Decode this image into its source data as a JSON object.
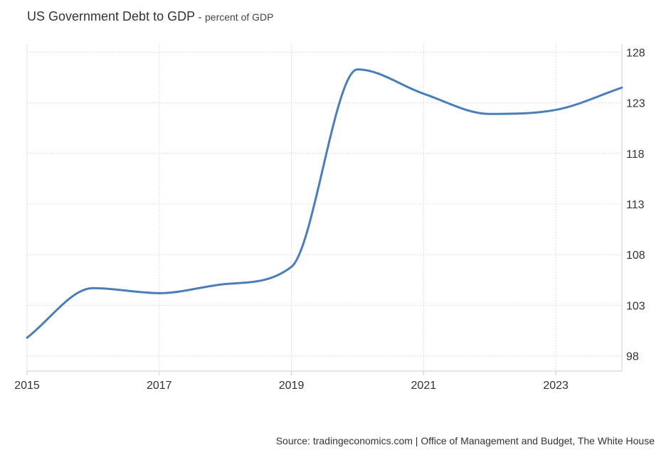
{
  "chart_data": {
    "type": "line",
    "title": "US Government Debt to GDP",
    "title_separator": "-",
    "subtitle": "percent of GDP",
    "x_tick_labels": [
      "2015",
      "2017",
      "2019",
      "2021",
      "2023"
    ],
    "y_tick_labels": [
      "98",
      "103",
      "108",
      "113",
      "118",
      "123",
      "128"
    ],
    "xlim": [
      2015,
      2024
    ],
    "ylim": [
      96.5,
      128.8
    ],
    "y_axis_position": "right",
    "grid": true,
    "legend": "none",
    "series": [
      {
        "color": "#4a7ebb",
        "x": [
          2015,
          2016,
          2017,
          2018,
          2019,
          2020,
          2021,
          2022,
          2023,
          2024
        ],
        "values": [
          99.8,
          104.7,
          104.2,
          105.1,
          106.8,
          126.3,
          123.9,
          121.9,
          122.3,
          124.5
        ]
      }
    ]
  },
  "source": "Source: tradingeconomics.com | Office of Management and Budget, The White House"
}
